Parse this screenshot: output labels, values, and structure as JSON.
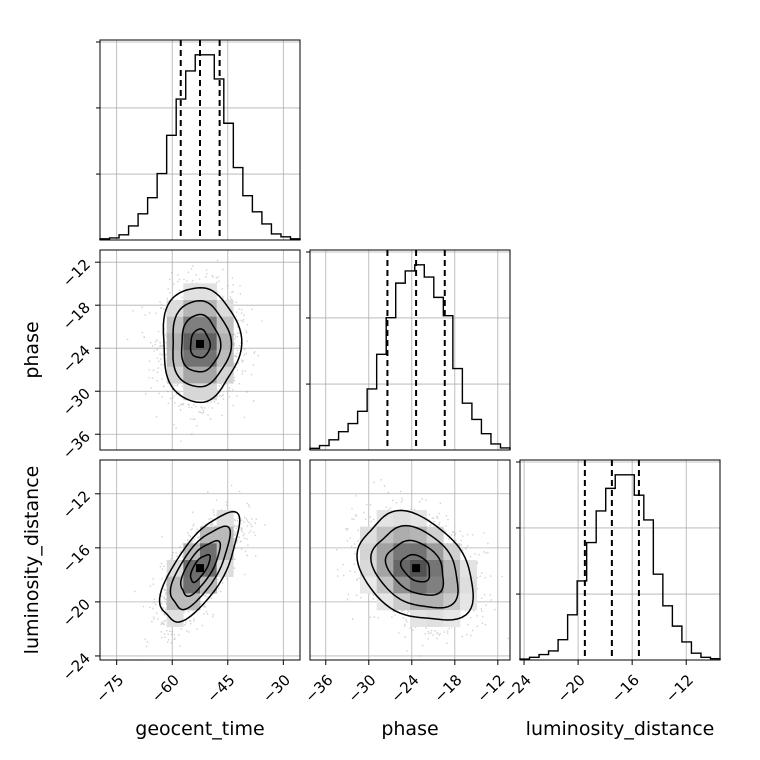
{
  "chart_data": {
    "type": "corner",
    "parameters": [
      "geocent_time",
      "phase",
      "luminosity_distance"
    ],
    "axis_labels": {
      "geocent_time": "geocent_time",
      "phase": "phase",
      "luminosity_distance": "luminosity_distance"
    },
    "ranges": {
      "geocent_time": [
        -79.5,
        -25.5
      ],
      "phase": [
        -38.2,
        -10.3
      ],
      "luminosity_distance": [
        -24.3,
        -9.5
      ]
    },
    "ticks": {
      "geocent_time": [
        {
          "value": -75,
          "label": "−75"
        },
        {
          "value": -60,
          "label": "−60"
        },
        {
          "value": -45,
          "label": "−45"
        },
        {
          "value": -30,
          "label": "−30"
        }
      ],
      "phase": [
        {
          "value": -36,
          "label": "−36"
        },
        {
          "value": -30,
          "label": "−30"
        },
        {
          "value": -24,
          "label": "−24"
        },
        {
          "value": -18,
          "label": "−18"
        },
        {
          "value": -12,
          "label": "−12"
        }
      ],
      "luminosity_distance": [
        {
          "value": -24,
          "label": "−24"
        },
        {
          "value": -20,
          "label": "−20"
        },
        {
          "value": -16,
          "label": "−16"
        },
        {
          "value": -12,
          "label": "−12"
        }
      ]
    },
    "quantiles": {
      "geocent_time": [
        -57.7,
        -52.5,
        -47.2
      ],
      "phase": [
        -27.4,
        -23.4,
        -19.4
      ],
      "luminosity_distance": [
        -19.5,
        -17.5,
        -15.5
      ]
    },
    "histograms_1d": {
      "geocent_time": [
        0.6,
        1,
        2.6,
        7,
        13,
        21,
        33,
        52,
        70,
        84,
        92,
        92,
        80,
        58,
        36,
        22,
        14,
        8,
        3,
        1.6,
        0.6
      ],
      "phase": [
        0.8,
        2.2,
        5,
        9,
        13,
        19,
        30,
        47,
        65,
        82,
        88,
        91,
        85,
        75,
        66,
        40,
        23,
        15,
        8,
        3,
        1
      ],
      "luminosity_distance": [
        0.4,
        1.2,
        2.4,
        4,
        9,
        20,
        35,
        52,
        66,
        76,
        82,
        82,
        73,
        62,
        38,
        24,
        15,
        8,
        3,
        1.2,
        0.6
      ]
    },
    "correlations": {
      "phase|geocent_time": 0.0,
      "luminosity_distance|geocent_time": 0.7,
      "luminosity_distance|phase": -0.3
    },
    "grid": true
  }
}
